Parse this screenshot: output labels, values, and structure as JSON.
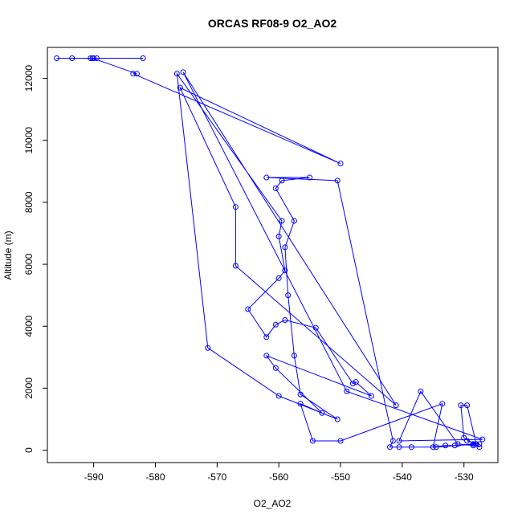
{
  "chart_data": {
    "type": "scatter",
    "title": "ORCAS RF08-9 O2_AO2",
    "xlabel": "O2_AO2",
    "ylabel": "Altitude (m)",
    "xlim": [
      -597.5,
      -524.5
    ],
    "ylim": [
      -400,
      13000
    ],
    "xticks": [
      -590,
      -580,
      -570,
      -560,
      -550,
      -540,
      -530
    ],
    "xtick_labels": [
      "-590",
      "-580",
      "-570",
      "-560",
      "-550",
      "-540",
      "-530"
    ],
    "yticks": [
      0,
      2000,
      4000,
      6000,
      8000,
      10000,
      12000
    ],
    "ytick_labels": [
      "0",
      "2000",
      "4000",
      "6000",
      "8000",
      "10000",
      "12000"
    ],
    "grid": false,
    "legend": "none",
    "series_color": "#0000ff",
    "points": [
      [
        -582,
        12650
      ],
      [
        -589.5,
        12650
      ],
      [
        -590,
        12650
      ],
      [
        -590.5,
        12650
      ],
      [
        -593.5,
        12650
      ],
      [
        -596,
        12650
      ],
      [
        -590.2,
        12650
      ],
      [
        -583,
        12150
      ],
      [
        -583.6,
        12150
      ],
      [
        -550,
        9250
      ],
      [
        -576,
        11700
      ],
      [
        -567,
        7850
      ],
      [
        -567,
        5950
      ],
      [
        -541,
        1450
      ],
      [
        -575.5,
        12200
      ],
      [
        -549,
        1900
      ],
      [
        -527,
        350
      ],
      [
        -540.5,
        300
      ],
      [
        -537,
        1900
      ],
      [
        -531,
        200
      ],
      [
        -528.5,
        150
      ],
      [
        -527.5,
        100
      ],
      [
        -530,
        400
      ],
      [
        -530.5,
        1450
      ],
      [
        -529.5,
        1450
      ],
      [
        -528,
        200
      ],
      [
        -534.5,
        100
      ],
      [
        -538.5,
        100
      ],
      [
        -540.5,
        100
      ],
      [
        -542,
        100
      ],
      [
        -541.5,
        300
      ],
      [
        -550.5,
        8700
      ],
      [
        -562,
        8800
      ],
      [
        -555,
        8800
      ],
      [
        -559.5,
        8700
      ],
      [
        -560.5,
        8450
      ],
      [
        -557.5,
        7400
      ],
      [
        -559,
        6550
      ],
      [
        -558.5,
        5000
      ],
      [
        -557.5,
        3050
      ],
      [
        -556.5,
        1800
      ],
      [
        -550.5,
        1000
      ],
      [
        -560,
        1750
      ],
      [
        -571.5,
        3300
      ],
      [
        -576.5,
        12150
      ],
      [
        -559.5,
        7400
      ],
      [
        -560,
        6900
      ],
      [
        -559,
        5800
      ],
      [
        -560,
        5550
      ],
      [
        -565,
        4550
      ],
      [
        -562,
        3650
      ],
      [
        -560.5,
        4050
      ],
      [
        -559,
        4200
      ],
      [
        -554,
        3950
      ],
      [
        -548,
        2150
      ],
      [
        -547.5,
        2200
      ],
      [
        -545,
        1750
      ],
      [
        -562,
        3050
      ],
      [
        -560.5,
        2650
      ],
      [
        -553,
        1200
      ],
      [
        -556.5,
        1500
      ],
      [
        -554.5,
        300
      ],
      [
        -550,
        300
      ],
      [
        -533.5,
        1500
      ],
      [
        -535,
        100
      ],
      [
        -533,
        150
      ],
      [
        -531.5,
        150
      ],
      [
        -528.5,
        200
      ],
      [
        -527.5,
        200
      ],
      [
        -529.5,
        300
      ]
    ]
  }
}
